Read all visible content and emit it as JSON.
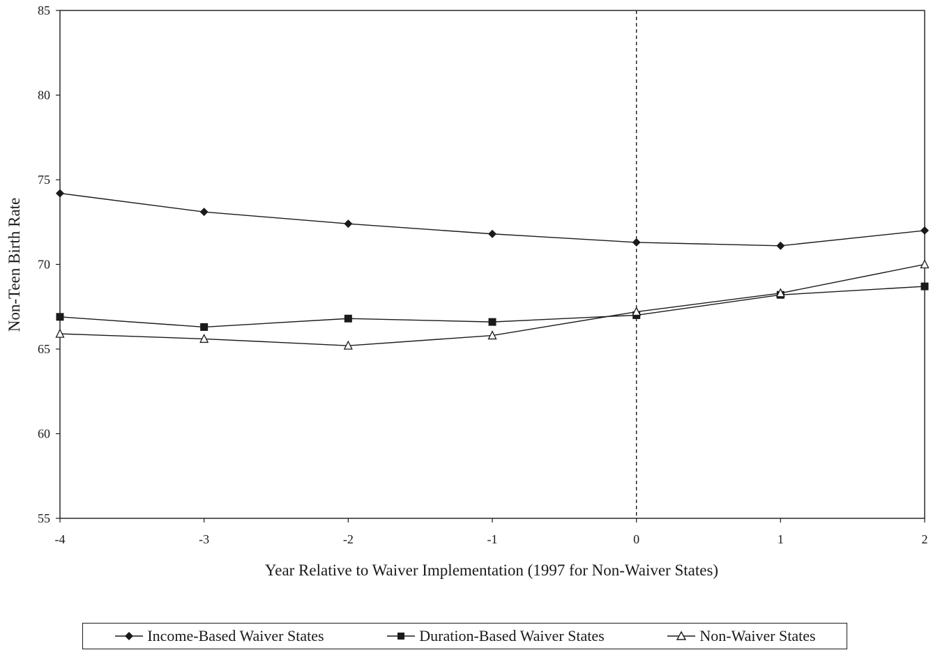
{
  "chart_data": {
    "type": "line",
    "title": "",
    "xlabel": "Year Relative to Waiver Implementation (1997 for Non-Waiver States)",
    "ylabel": "Non-Teen Birth Rate",
    "x": [
      -4,
      -3,
      -2,
      -1,
      0,
      1,
      2
    ],
    "x_ticks": [
      "-4",
      "-3",
      "-2",
      "-1",
      "0",
      "1",
      "2"
    ],
    "y_ticks": [
      "55",
      "60",
      "65",
      "70",
      "75",
      "80",
      "85"
    ],
    "xlim": [
      -4,
      2
    ],
    "ylim": [
      55,
      85
    ],
    "grid": false,
    "reference_line": {
      "x": 0,
      "style": "dashed"
    },
    "legend_placement": "bottom",
    "series": [
      {
        "name": "Income-Based Waiver States",
        "marker": "diamond-filled",
        "values": [
          74.2,
          73.1,
          72.4,
          71.8,
          71.3,
          71.1,
          72.0
        ]
      },
      {
        "name": "Duration-Based Waiver States",
        "marker": "square-filled",
        "values": [
          66.9,
          66.3,
          66.8,
          66.6,
          67.0,
          68.2,
          68.7
        ]
      },
      {
        "name": "Non-Waiver States",
        "marker": "triangle-open",
        "values": [
          65.9,
          65.6,
          65.2,
          65.8,
          67.2,
          68.3,
          70.0
        ]
      }
    ],
    "colors": {
      "line": "#1a1a1a",
      "background": "#ffffff"
    }
  }
}
